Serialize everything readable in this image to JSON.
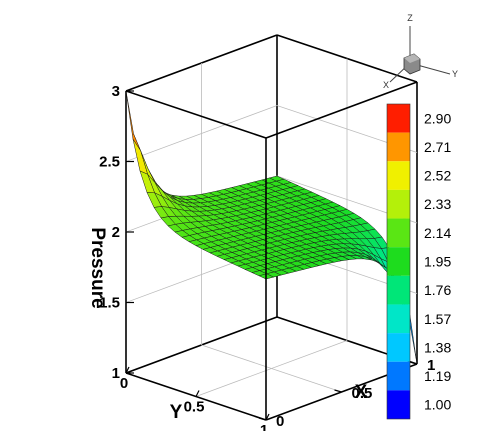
{
  "chart_data": {
    "type": "surface",
    "zlabel": "Pressure",
    "xlabel": "X",
    "ylabel": "Y",
    "x_ticks": [
      "0",
      "0.5",
      "1"
    ],
    "y_ticks": [
      "0",
      "0.5",
      "1"
    ],
    "z_ticks": [
      "1",
      "1.5",
      "2",
      "2.5",
      "3"
    ],
    "xlim": [
      0,
      1
    ],
    "ylim": [
      0,
      1
    ],
    "zlim": [
      1,
      3
    ],
    "grid": true,
    "legend_placement": "right",
    "grid_resolution": 20,
    "surface": {
      "description": "saddle-like pressure field, approx. 2 at the centre, rising toward 3 at (X=0,Y=0) and falling toward 1 at (X=1,Y=1)",
      "corner_values": {
        "x0_y0": 3.0,
        "x1_y1": 1.0,
        "x0_y1": 2.0,
        "x1_y0": 2.0
      },
      "centre_value": 2.0
    },
    "colorbar": {
      "levels": [
        "2.90",
        "2.71",
        "2.52",
        "2.33",
        "2.14",
        "1.95",
        "1.76",
        "1.57",
        "1.38",
        "1.19",
        "1.00"
      ],
      "min": 1.0,
      "max": 2.9
    },
    "orientation_triad": {
      "labels": [
        "Z",
        "Y",
        "X"
      ]
    }
  }
}
